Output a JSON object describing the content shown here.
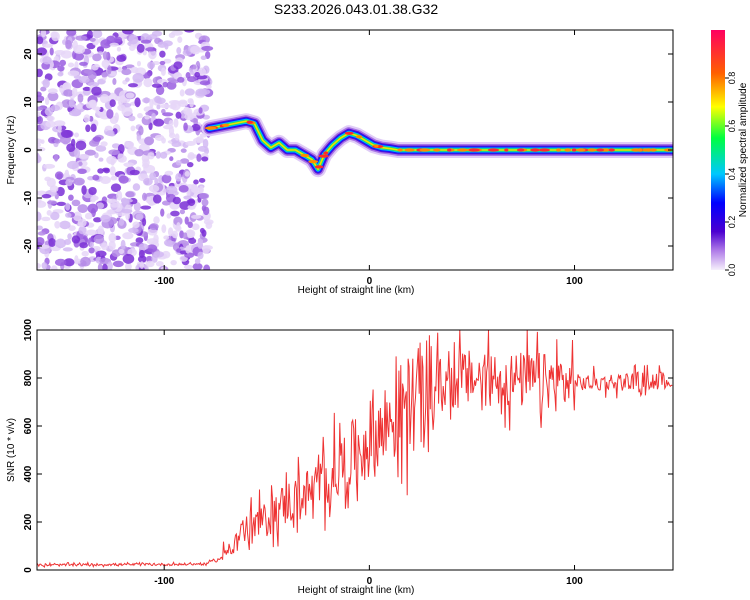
{
  "title": "S233.2026.043.01.38.G32",
  "chart_data": [
    {
      "type": "heatmap",
      "name": "spectrogram",
      "xlabel": "Height of straight line (km)",
      "ylabel": "Frequency (Hz)",
      "xlim": [
        -162,
        148
      ],
      "ylim": [
        -25,
        25
      ],
      "xticks": [
        -100,
        0,
        100
      ],
      "yticks": [
        -20,
        -10,
        0,
        10,
        20
      ],
      "colorbar": {
        "label": "Normalized spectral amplitude",
        "range": [
          0,
          1
        ],
        "ticks": [
          0.0,
          0.2,
          0.4,
          0.6,
          0.8
        ]
      },
      "noise_region": {
        "x": [
          -162,
          -78
        ],
        "y": [
          -25,
          25
        ]
      },
      "track": {
        "x": [
          -78,
          -72,
          -66,
          -60,
          -56,
          -52,
          -48,
          -44,
          -40,
          -36,
          -32,
          -28,
          -25,
          -22,
          -18,
          -14,
          -10,
          -6,
          -2,
          2,
          6,
          10,
          14,
          20,
          30,
          40,
          60,
          80,
          100,
          120,
          148
        ],
        "y": [
          4.5,
          5,
          5.5,
          6,
          5.5,
          2,
          0.5,
          1.5,
          0,
          0,
          -1,
          -2,
          -4,
          -1,
          1,
          2.5,
          3.5,
          3,
          2,
          1,
          0.5,
          0.3,
          0,
          0,
          0,
          0,
          0,
          0,
          0,
          0,
          0
        ]
      }
    },
    {
      "type": "line",
      "name": "snr",
      "xlabel": "Height of straight line (km)",
      "ylabel": "SNR (10 * v/v)",
      "xlim": [
        -162,
        148
      ],
      "ylim": [
        0,
        1000
      ],
      "xticks": [
        -100,
        0,
        100
      ],
      "yticks": [
        0,
        200,
        400,
        600,
        800,
        1000
      ],
      "color": "#ee3333",
      "series": [
        {
          "name": "SNR",
          "x": [
            -162,
            -140,
            -120,
            -100,
            -80,
            -72,
            -68,
            -64,
            -60,
            -55,
            -50,
            -45,
            -40,
            -35,
            -30,
            -25,
            -20,
            -15,
            -10,
            -5,
            0,
            5,
            10,
            15,
            20,
            25,
            30,
            40,
            50,
            60,
            70,
            80,
            90,
            100,
            110,
            120,
            130,
            148
          ],
          "y": [
            20,
            22,
            23,
            23,
            25,
            50,
            100,
            140,
            170,
            190,
            210,
            250,
            280,
            300,
            320,
            340,
            380,
            420,
            460,
            500,
            540,
            580,
            620,
            660,
            700,
            730,
            760,
            780,
            800,
            800,
            790,
            790,
            780,
            780,
            780,
            785,
            790,
            790
          ]
        }
      ]
    }
  ]
}
